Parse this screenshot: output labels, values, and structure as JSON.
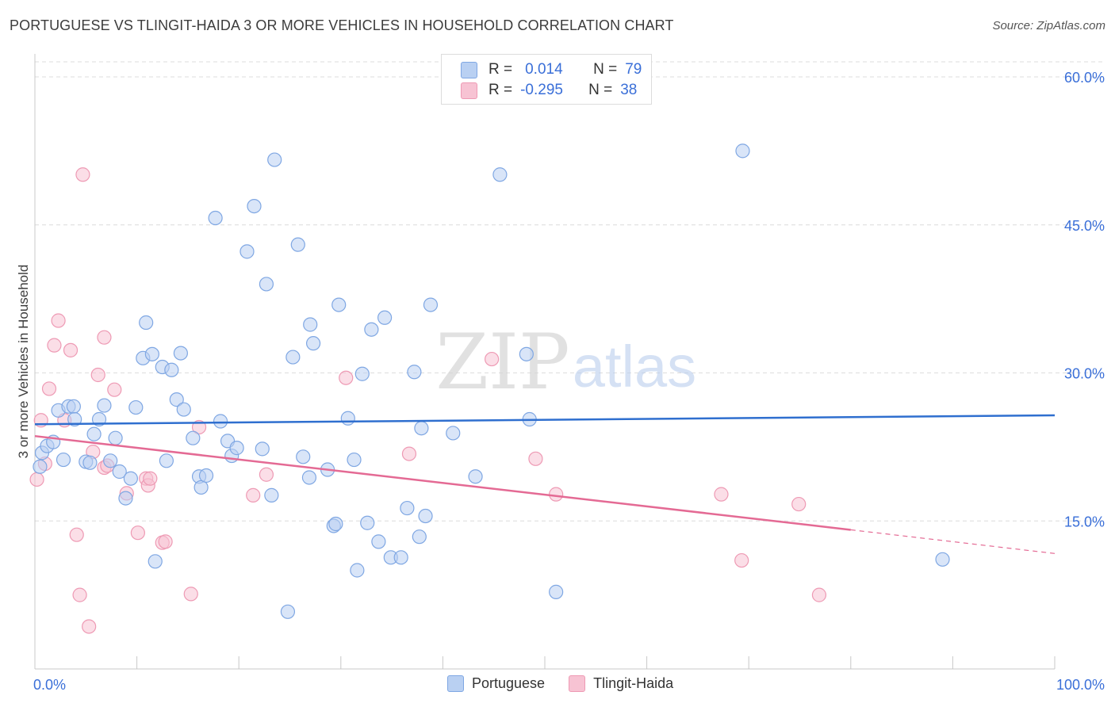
{
  "title": "PORTUGUESE VS TLINGIT-HAIDA 3 OR MORE VEHICLES IN HOUSEHOLD CORRELATION CHART",
  "source": "Source: ZipAtlas.com",
  "watermark": {
    "zip": "ZIP",
    "atlas": "atlas"
  },
  "colors": {
    "blue_fill": "#b9d0f2",
    "blue_stroke": "#7fa7e3",
    "blue_line": "#2f6fcf",
    "pink_fill": "#f7c3d3",
    "pink_stroke": "#ee9ab4",
    "pink_line": "#e46a94",
    "axis_text": "#3a6fd8",
    "grid": "#dcdcdc"
  },
  "legend_top": {
    "rows": [
      {
        "r_label": "R =",
        "r_value": "0.014",
        "n_label": "N =",
        "n_value": "79"
      },
      {
        "r_label": "R =",
        "r_value": "-0.295",
        "n_label": "N =",
        "n_value": "38"
      }
    ]
  },
  "legend_bottom": [
    "Portuguese",
    "Tlingit-Haida"
  ],
  "chart_data": {
    "type": "scatter",
    "title": "PORTUGUESE VS TLINGIT-HAIDA 3 OR MORE VEHICLES IN HOUSEHOLD CORRELATION CHART",
    "xlabel": "",
    "ylabel": "3 or more Vehicles in Household",
    "xlim": [
      0,
      100
    ],
    "ylim": [
      0,
      63
    ],
    "x_tick_labels": [
      "0.0%",
      "100.0%"
    ],
    "y_ticks": [
      15,
      30,
      45,
      60
    ],
    "y_tick_labels": [
      "15.0%",
      "30.0%",
      "45.0%",
      "60.0%"
    ],
    "grid": true,
    "legend_position": "top-center",
    "series": [
      {
        "name": "Portuguese",
        "r": 0.014,
        "n": 79,
        "trend": {
          "x0": 0,
          "y0": 24.8,
          "x1": 100,
          "y1": 25.7
        },
        "points": [
          [
            0.5,
            20.5
          ],
          [
            0.7,
            21.9
          ],
          [
            1.2,
            22.6
          ],
          [
            1.8,
            23.0
          ],
          [
            2.8,
            21.2
          ],
          [
            2.3,
            26.2
          ],
          [
            3.3,
            26.6
          ],
          [
            3.8,
            26.6
          ],
          [
            3.9,
            25.3
          ],
          [
            5.0,
            21.0
          ],
          [
            5.4,
            20.9
          ],
          [
            5.8,
            23.8
          ],
          [
            6.3,
            25.3
          ],
          [
            6.8,
            26.7
          ],
          [
            7.4,
            21.1
          ],
          [
            7.9,
            23.4
          ],
          [
            8.3,
            20.0
          ],
          [
            8.9,
            17.3
          ],
          [
            9.4,
            19.3
          ],
          [
            9.9,
            26.5
          ],
          [
            10.6,
            31.5
          ],
          [
            10.9,
            35.1
          ],
          [
            11.5,
            31.9
          ],
          [
            11.8,
            10.9
          ],
          [
            12.5,
            30.6
          ],
          [
            12.9,
            21.1
          ],
          [
            13.4,
            30.3
          ],
          [
            13.9,
            27.3
          ],
          [
            14.3,
            32.0
          ],
          [
            14.6,
            26.3
          ],
          [
            15.5,
            23.4
          ],
          [
            16.1,
            19.5
          ],
          [
            16.3,
            18.4
          ],
          [
            16.8,
            19.6
          ],
          [
            17.7,
            45.7
          ],
          [
            18.2,
            25.1
          ],
          [
            18.9,
            23.1
          ],
          [
            19.3,
            21.6
          ],
          [
            19.8,
            22.4
          ],
          [
            20.8,
            42.3
          ],
          [
            21.5,
            46.9
          ],
          [
            22.3,
            22.3
          ],
          [
            22.7,
            39.0
          ],
          [
            23.2,
            17.6
          ],
          [
            23.5,
            51.6
          ],
          [
            25.3,
            31.6
          ],
          [
            25.8,
            43.0
          ],
          [
            26.3,
            21.5
          ],
          [
            27.0,
            34.9
          ],
          [
            27.3,
            33.0
          ],
          [
            26.9,
            19.4
          ],
          [
            24.8,
            5.8
          ],
          [
            28.7,
            20.2
          ],
          [
            29.3,
            14.5
          ],
          [
            29.5,
            14.7
          ],
          [
            29.8,
            36.9
          ],
          [
            30.7,
            25.4
          ],
          [
            31.3,
            21.2
          ],
          [
            31.6,
            10.0
          ],
          [
            32.1,
            29.9
          ],
          [
            32.6,
            14.8
          ],
          [
            33.0,
            34.4
          ],
          [
            33.7,
            12.9
          ],
          [
            34.3,
            35.6
          ],
          [
            34.9,
            11.3
          ],
          [
            35.9,
            11.3
          ],
          [
            36.5,
            16.3
          ],
          [
            37.2,
            30.1
          ],
          [
            37.7,
            13.4
          ],
          [
            37.9,
            24.4
          ],
          [
            38.3,
            15.5
          ],
          [
            38.8,
            36.9
          ],
          [
            41.0,
            23.9
          ],
          [
            43.2,
            19.5
          ],
          [
            45.6,
            50.1
          ],
          [
            48.2,
            31.9
          ],
          [
            48.5,
            25.3
          ],
          [
            51.1,
            7.8
          ],
          [
            69.4,
            52.5
          ],
          [
            89.0,
            11.1
          ]
        ]
      },
      {
        "name": "Tlingit-Haida",
        "r": -0.295,
        "n": 38,
        "trend": {
          "x0": 0,
          "y0": 23.6,
          "x1": 80,
          "y1": 14.1,
          "dash_to_x": 100,
          "dash_to_y": 11.7
        },
        "points": [
          [
            0.2,
            19.2
          ],
          [
            0.6,
            25.2
          ],
          [
            1.0,
            20.8
          ],
          [
            1.4,
            28.4
          ],
          [
            1.9,
            32.8
          ],
          [
            2.3,
            35.3
          ],
          [
            2.9,
            25.2
          ],
          [
            3.5,
            32.3
          ],
          [
            4.1,
            13.6
          ],
          [
            4.4,
            7.5
          ],
          [
            4.7,
            50.1
          ],
          [
            5.3,
            4.3
          ],
          [
            5.7,
            22.0
          ],
          [
            6.2,
            29.8
          ],
          [
            6.8,
            33.6
          ],
          [
            6.8,
            20.4
          ],
          [
            7.1,
            20.6
          ],
          [
            7.8,
            28.3
          ],
          [
            9.0,
            17.8
          ],
          [
            10.1,
            13.8
          ],
          [
            10.9,
            19.3
          ],
          [
            11.1,
            18.6
          ],
          [
            11.3,
            19.3
          ],
          [
            12.5,
            12.8
          ],
          [
            12.8,
            12.9
          ],
          [
            15.3,
            7.6
          ],
          [
            16.1,
            24.5
          ],
          [
            21.4,
            17.6
          ],
          [
            22.7,
            19.7
          ],
          [
            30.5,
            29.5
          ],
          [
            36.7,
            21.8
          ],
          [
            44.8,
            31.4
          ],
          [
            49.1,
            21.3
          ],
          [
            51.1,
            17.7
          ],
          [
            67.3,
            17.7
          ],
          [
            69.3,
            11.0
          ],
          [
            74.9,
            16.7
          ],
          [
            76.9,
            7.5
          ]
        ]
      }
    ]
  }
}
